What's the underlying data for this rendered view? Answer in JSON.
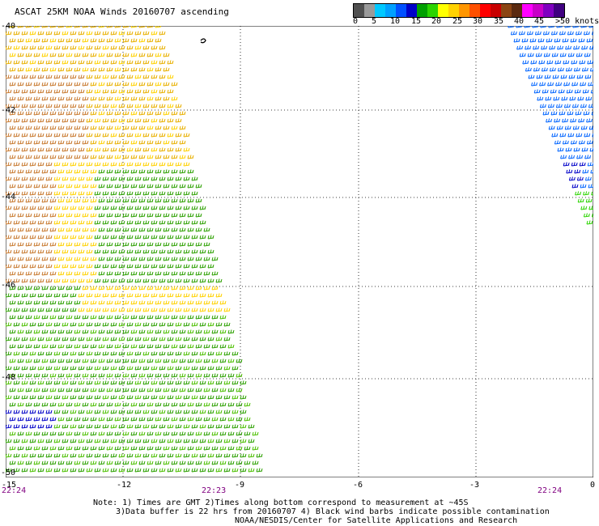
{
  "title": "ASCAT 25KM NOAA Winds 20160707 ascending",
  "legend": {
    "colors": [
      "#505050",
      "#9a9a9a",
      "#00c8ff",
      "#00a0ff",
      "#0050ff",
      "#0000c8",
      "#00a000",
      "#2cd400",
      "#ffff00",
      "#ffd200",
      "#ff9600",
      "#ff5000",
      "#ff0000",
      "#c80000",
      "#8b4513",
      "#5a2a10",
      "#ff00ff",
      "#c800c8",
      "#8000c0",
      "#400080"
    ],
    "labels": [
      "0",
      "5",
      "10",
      "15",
      "20",
      "25",
      "30",
      "35",
      "40",
      "45",
      ">50 knots"
    ]
  },
  "axes": {
    "x_ticks": [
      "-15",
      "-12",
      "-9",
      "-6",
      "-3",
      "0"
    ],
    "y_ticks": [
      "-40",
      "-42",
      "-44",
      "-46",
      "-48",
      "-50"
    ]
  },
  "times": [
    "22:24",
    "22:23",
    "22:24"
  ],
  "notes": [
    "Note: 1) Times are GMT 2)Times along bottom correspond to measurement at ~45S",
    "3)Data buffer is 22 hrs from 20160707 4) Black wind barbs indicate possible contamination",
    "NOAA/NESDIS/Center for Satellite Applications and Research"
  ]
}
